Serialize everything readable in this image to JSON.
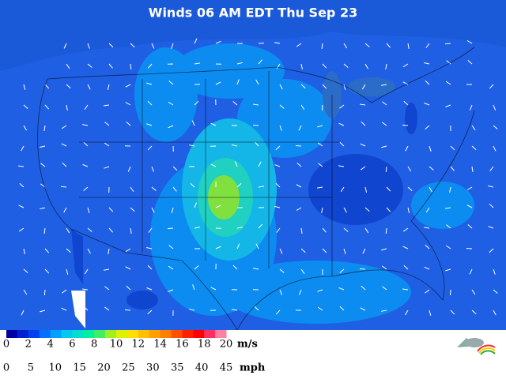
{
  "title": "Winds 06 AM EDT Thu Sep 23",
  "legend": {
    "ms": {
      "labels": [
        0,
        2,
        4,
        6,
        8,
        10,
        12,
        14,
        16,
        18,
        20
      ],
      "unit": "m/s"
    },
    "mph": {
      "labels": [
        0,
        5,
        10,
        15,
        20,
        25,
        30,
        35,
        40,
        45
      ],
      "unit": "mph"
    }
  }
}
